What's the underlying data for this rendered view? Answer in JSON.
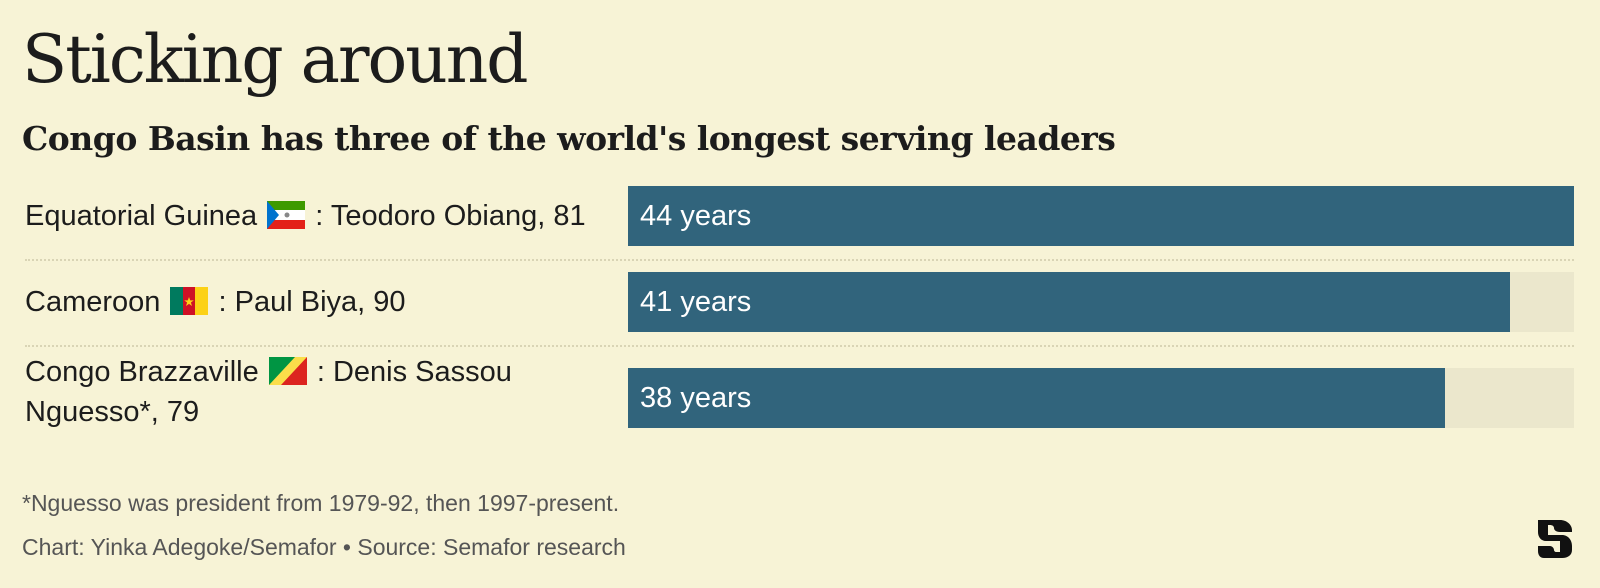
{
  "header": {
    "title": "Sticking around",
    "subtitle": "Congo Basin has three of the world's longest serving leaders"
  },
  "chart_data": {
    "type": "bar",
    "orientation": "horizontal",
    "title": "Sticking around",
    "subtitle": "Congo Basin has three of the world's longest serving leaders",
    "categories": [
      "Equatorial Guinea: Teodoro Obiang, 81",
      "Cameroon: Paul Biya, 90",
      "Congo Brazzaville: Denis Sassou Nguesso*, 79"
    ],
    "values": [
      44,
      41,
      38
    ],
    "value_labels": [
      "44 years",
      "41 years",
      "38 years"
    ],
    "xlim": [
      0,
      44
    ],
    "grid": false,
    "bar_color": "#31647c",
    "track_color": "#ebe7cc",
    "rows": [
      {
        "country": "Equatorial Guinea",
        "flag": "equatorial-guinea-flag-icon",
        "leader": ": Teodoro Obiang, 81",
        "value": 44,
        "value_label": "44 years"
      },
      {
        "country": "Cameroon",
        "flag": "cameroon-flag-icon",
        "leader": ": Paul Biya, 90",
        "value": 41,
        "value_label": "41 years"
      },
      {
        "country": "Congo Brazzaville",
        "flag": "congo-flag-icon",
        "leader": ": Denis Sassou Nguesso*, 79",
        "value": 38,
        "value_label": "38 years"
      }
    ]
  },
  "footer": {
    "note": "*Nguesso was president from 1979-92, then 1997-present.",
    "credit": "Chart: Yinka Adegoke/Semafor • Source: Semafor research",
    "logo": "semafor-logo-icon"
  },
  "colors": {
    "background": "#f7f3d6",
    "bar": "#31647c",
    "track": "#ebe7cc",
    "text": "#1c1c1c",
    "muted": "#555555"
  }
}
